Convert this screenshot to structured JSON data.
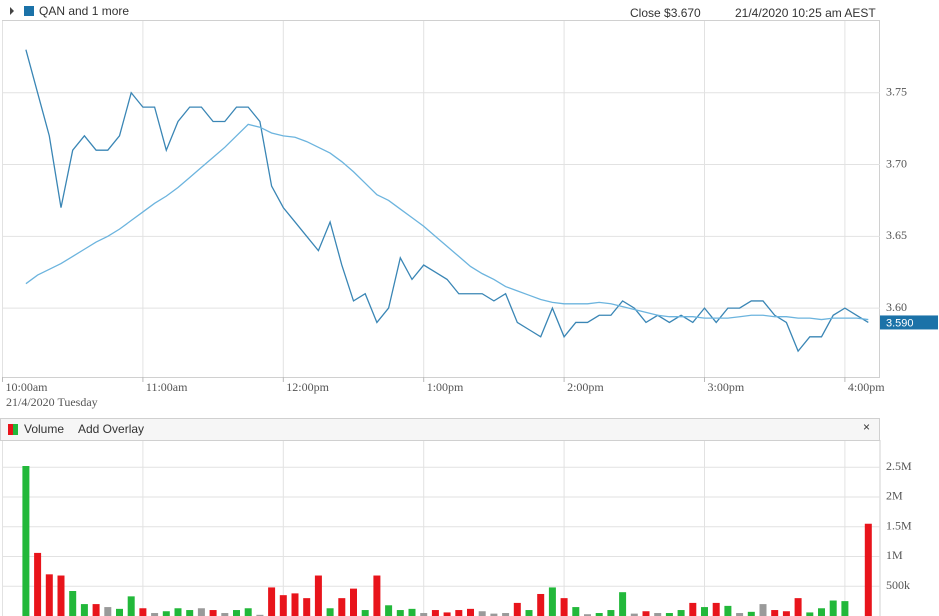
{
  "header": {
    "title": "QAN and 1 more",
    "close": "Close $3.670",
    "datetime": "21/4/2020 10:25 am AEST"
  },
  "chart_data": [
    {
      "type": "line",
      "categories": [
        "10:00am",
        null,
        null,
        null,
        null,
        null,
        null,
        null,
        null,
        null,
        null,
        null,
        "11:00am",
        null,
        null,
        null,
        null,
        null,
        null,
        null,
        null,
        null,
        null,
        null,
        "12:00pm",
        null,
        null,
        null,
        null,
        null,
        null,
        null,
        null,
        null,
        null,
        null,
        "1:00pm",
        null,
        null,
        null,
        null,
        null,
        null,
        null,
        null,
        null,
        null,
        null,
        "2:00pm",
        null,
        null,
        null,
        null,
        null,
        null,
        null,
        null,
        null,
        null,
        null,
        "3:00pm",
        null,
        null,
        null,
        null,
        null,
        null,
        null,
        null,
        null,
        null,
        null,
        "4:00pm",
        null,
        null
      ],
      "date_label": "21/4/2020 Tuesday",
      "series": [
        {
          "color": "#3a86b5",
          "values": [
            null,
            null,
            3.78,
            3.75,
            3.72,
            3.67,
            3.71,
            3.72,
            3.71,
            3.71,
            3.72,
            3.75,
            3.74,
            3.74,
            3.71,
            3.73,
            3.74,
            3.74,
            3.73,
            3.73,
            3.74,
            3.74,
            3.73,
            3.685,
            3.67,
            3.66,
            3.65,
            3.64,
            3.66,
            3.63,
            3.605,
            3.61,
            3.59,
            3.6,
            3.635,
            3.62,
            3.63,
            3.625,
            3.62,
            3.61,
            3.61,
            3.61,
            3.605,
            3.61,
            3.59,
            3.585,
            3.58,
            3.6,
            3.58,
            3.59,
            3.59,
            3.595,
            3.595,
            3.605,
            3.6,
            3.59,
            3.595,
            3.59,
            3.595,
            3.59,
            3.6,
            3.59,
            3.6,
            3.6,
            3.605,
            3.605,
            3.595,
            3.59,
            3.57,
            3.58,
            3.58,
            3.595,
            3.6,
            3.595,
            3.59
          ]
        },
        {
          "color": "#6cb4de",
          "values": [
            null,
            null,
            3.617,
            3.623,
            3.627,
            3.631,
            3.636,
            3.641,
            3.646,
            3.65,
            3.655,
            3.661,
            3.667,
            3.673,
            3.678,
            3.684,
            3.691,
            3.698,
            3.705,
            3.712,
            3.72,
            3.728,
            3.726,
            3.722,
            3.72,
            3.719,
            3.716,
            3.712,
            3.708,
            3.702,
            3.695,
            3.687,
            3.679,
            3.675,
            3.669,
            3.663,
            3.657,
            3.65,
            3.643,
            3.636,
            3.629,
            3.624,
            3.62,
            3.615,
            3.612,
            3.609,
            3.606,
            3.604,
            3.603,
            3.603,
            3.603,
            3.604,
            3.603,
            3.601,
            3.599,
            3.597,
            3.595,
            3.594,
            3.594,
            3.594,
            3.593,
            3.593,
            3.593,
            3.594,
            3.595,
            3.595,
            3.594,
            3.594,
            3.593,
            3.593,
            3.592,
            3.593,
            3.593,
            3.593,
            3.592
          ]
        }
      ],
      "last_label": "3.590",
      "ylim": [
        3.552,
        3.8
      ],
      "yticks": [
        {
          "value": 3.6,
          "label": "3.60"
        },
        {
          "value": 3.65,
          "label": "3.65"
        },
        {
          "value": 3.7,
          "label": "3.70"
        },
        {
          "value": 3.75,
          "label": "3.75"
        }
      ],
      "grid": true
    },
    {
      "type": "bar",
      "title": "Volume",
      "overlay": "Add Overlay",
      "close_button": "×",
      "values": [
        null,
        null,
        2520000,
        1060000,
        700000,
        680000,
        420000,
        200000,
        200000,
        150000,
        120000,
        330000,
        130000,
        50000,
        80000,
        130000,
        100000,
        130000,
        100000,
        50000,
        100000,
        130000,
        20000,
        480000,
        350000,
        380000,
        300000,
        680000,
        130000,
        300000,
        460000,
        100000,
        680000,
        180000,
        100000,
        120000,
        50000,
        100000,
        60000,
        100000,
        120000,
        80000,
        40000,
        50000,
        220000,
        100000,
        370000,
        480000,
        300000,
        150000,
        30000,
        50000,
        100000,
        400000,
        40000,
        80000,
        50000,
        50000,
        100000,
        220000,
        150000,
        220000,
        170000,
        50000,
        70000,
        200000,
        100000,
        80000,
        300000,
        60000,
        130000,
        260000,
        250000,
        null,
        1550000
      ],
      "colors": [
        null,
        null,
        "#22b83a",
        "#e8141b",
        "#e8141b",
        "#e8141b",
        "#22b83a",
        "#22b83a",
        "#e8141b",
        "#9a9a9a",
        "#22b83a",
        "#22b83a",
        "#e8141b",
        "#9a9a9a",
        "#22b83a",
        "#22b83a",
        "#22b83a",
        "#9a9a9a",
        "#e8141b",
        "#9a9a9a",
        "#22b83a",
        "#22b83a",
        "#9a9a9a",
        "#e8141b",
        "#e8141b",
        "#e8141b",
        "#e8141b",
        "#e8141b",
        "#22b83a",
        "#e8141b",
        "#e8141b",
        "#22b83a",
        "#e8141b",
        "#22b83a",
        "#22b83a",
        "#22b83a",
        "#9a9a9a",
        "#e8141b",
        "#e8141b",
        "#e8141b",
        "#e8141b",
        "#9a9a9a",
        "#9a9a9a",
        "#9a9a9a",
        "#e8141b",
        "#22b83a",
        "#e8141b",
        "#22b83a",
        "#e8141b",
        "#22b83a",
        "#9a9a9a",
        "#22b83a",
        "#22b83a",
        "#22b83a",
        "#9a9a9a",
        "#e8141b",
        "#9a9a9a",
        "#22b83a",
        "#22b83a",
        "#e8141b",
        "#22b83a",
        "#e8141b",
        "#22b83a",
        "#9a9a9a",
        "#22b83a",
        "#9a9a9a",
        "#e8141b",
        "#e8141b",
        "#e8141b",
        "#22b83a",
        "#22b83a",
        "#22b83a",
        "#22b83a",
        null,
        "#e8141b"
      ],
      "ylim": [
        0,
        2940000
      ],
      "yticks": [
        {
          "value": 500000,
          "label": "500k"
        },
        {
          "value": 1000000,
          "label": "1M"
        },
        {
          "value": 1500000,
          "label": "1.5M"
        },
        {
          "value": 2000000,
          "label": "2M"
        },
        {
          "value": 2500000,
          "label": "2.5M"
        }
      ],
      "grid": true
    }
  ]
}
